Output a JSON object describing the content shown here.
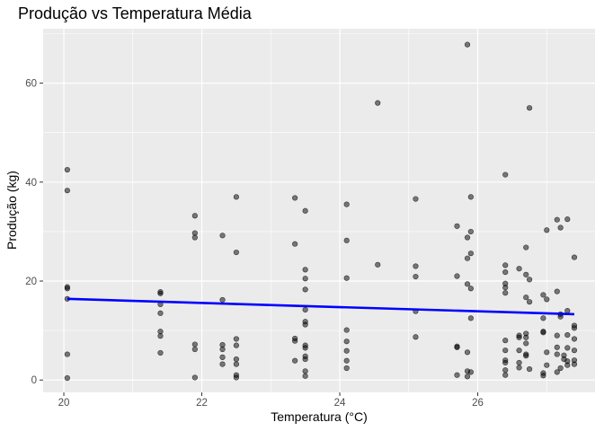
{
  "chart_data": {
    "type": "scatter",
    "title": "Produção vs Temperatura Média",
    "xlabel": "Temperatura (°C)",
    "ylabel": "Produção (kg)",
    "xlim": [
      19.7,
      27.7
    ],
    "ylim": [
      -2.5,
      71
    ],
    "xticks": [
      20,
      22,
      24,
      26
    ],
    "yticks": [
      0,
      20,
      40,
      60
    ],
    "x_tick_labels": [
      "20",
      "22",
      "24",
      "26"
    ],
    "y_tick_labels": [
      "0",
      "20",
      "40",
      "60"
    ],
    "grid": true,
    "legend": "none",
    "colors": {
      "panel": "#ebebeb",
      "grid_major": "#ffffff",
      "point": "#000000",
      "trend": "#0000ff"
    },
    "points": [
      {
        "x": 20.05,
        "y": 42.5
      },
      {
        "x": 20.05,
        "y": 38.3
      },
      {
        "x": 20.05,
        "y": 18.8
      },
      {
        "x": 20.05,
        "y": 18.5
      },
      {
        "x": 20.05,
        "y": 16.4
      },
      {
        "x": 20.05,
        "y": 5.2
      },
      {
        "x": 20.05,
        "y": 0.4
      },
      {
        "x": 21.4,
        "y": 17.8
      },
      {
        "x": 21.4,
        "y": 17.5
      },
      {
        "x": 21.4,
        "y": 15.3
      },
      {
        "x": 21.4,
        "y": 13.5
      },
      {
        "x": 21.4,
        "y": 9.8
      },
      {
        "x": 21.4,
        "y": 8.9
      },
      {
        "x": 21.4,
        "y": 5.5
      },
      {
        "x": 21.9,
        "y": 33.2
      },
      {
        "x": 21.9,
        "y": 29.7
      },
      {
        "x": 21.9,
        "y": 28.8
      },
      {
        "x": 21.9,
        "y": 7.2
      },
      {
        "x": 21.9,
        "y": 6.2
      },
      {
        "x": 21.9,
        "y": 0.5
      },
      {
        "x": 22.3,
        "y": 29.2
      },
      {
        "x": 22.3,
        "y": 16.2
      },
      {
        "x": 22.3,
        "y": 7.1
      },
      {
        "x": 22.3,
        "y": 6.2
      },
      {
        "x": 22.3,
        "y": 4.6
      },
      {
        "x": 22.3,
        "y": 3.2
      },
      {
        "x": 22.5,
        "y": 37.0
      },
      {
        "x": 22.5,
        "y": 25.8
      },
      {
        "x": 22.5,
        "y": 8.3
      },
      {
        "x": 22.5,
        "y": 7.0
      },
      {
        "x": 22.5,
        "y": 4.2
      },
      {
        "x": 22.5,
        "y": 3.2
      },
      {
        "x": 22.5,
        "y": 1.0
      },
      {
        "x": 22.5,
        "y": 0.5
      },
      {
        "x": 23.35,
        "y": 36.8
      },
      {
        "x": 23.35,
        "y": 27.5
      },
      {
        "x": 23.35,
        "y": 8.4
      },
      {
        "x": 23.35,
        "y": 7.9
      },
      {
        "x": 23.35,
        "y": 3.9
      },
      {
        "x": 23.5,
        "y": 34.2
      },
      {
        "x": 23.5,
        "y": 22.3
      },
      {
        "x": 23.5,
        "y": 20.5
      },
      {
        "x": 23.5,
        "y": 18.3
      },
      {
        "x": 23.5,
        "y": 14.2
      },
      {
        "x": 23.5,
        "y": 11.8
      },
      {
        "x": 23.5,
        "y": 11.2
      },
      {
        "x": 23.5,
        "y": 7.0
      },
      {
        "x": 23.5,
        "y": 6.5
      },
      {
        "x": 23.5,
        "y": 4.8
      },
      {
        "x": 23.5,
        "y": 4.2
      },
      {
        "x": 23.5,
        "y": 1.8
      },
      {
        "x": 23.5,
        "y": 0.8
      },
      {
        "x": 24.1,
        "y": 35.5
      },
      {
        "x": 24.1,
        "y": 28.2
      },
      {
        "x": 24.1,
        "y": 20.6
      },
      {
        "x": 24.1,
        "y": 10.1
      },
      {
        "x": 24.1,
        "y": 7.8
      },
      {
        "x": 24.1,
        "y": 5.9
      },
      {
        "x": 24.1,
        "y": 3.9
      },
      {
        "x": 24.1,
        "y": 2.4
      },
      {
        "x": 24.55,
        "y": 56.0
      },
      {
        "x": 24.55,
        "y": 23.3
      },
      {
        "x": 25.1,
        "y": 36.6
      },
      {
        "x": 25.1,
        "y": 23.0
      },
      {
        "x": 25.1,
        "y": 20.9
      },
      {
        "x": 25.1,
        "y": 13.9
      },
      {
        "x": 25.1,
        "y": 8.7
      },
      {
        "x": 25.7,
        "y": 31.1
      },
      {
        "x": 25.7,
        "y": 21.0
      },
      {
        "x": 25.7,
        "y": 6.8
      },
      {
        "x": 25.7,
        "y": 6.6
      },
      {
        "x": 25.7,
        "y": 1.0
      },
      {
        "x": 25.85,
        "y": 67.8
      },
      {
        "x": 25.85,
        "y": 28.8
      },
      {
        "x": 25.85,
        "y": 24.6
      },
      {
        "x": 25.85,
        "y": 19.4
      },
      {
        "x": 25.85,
        "y": 5.6
      },
      {
        "x": 25.85,
        "y": 1.8
      },
      {
        "x": 25.85,
        "y": 0.7
      },
      {
        "x": 25.9,
        "y": 37.0
      },
      {
        "x": 25.9,
        "y": 30.0
      },
      {
        "x": 25.9,
        "y": 25.6
      },
      {
        "x": 25.9,
        "y": 18.5
      },
      {
        "x": 25.9,
        "y": 12.5
      },
      {
        "x": 25.9,
        "y": 1.6
      },
      {
        "x": 26.4,
        "y": 41.5
      },
      {
        "x": 26.4,
        "y": 23.2
      },
      {
        "x": 26.4,
        "y": 21.8
      },
      {
        "x": 26.4,
        "y": 19.5
      },
      {
        "x": 26.4,
        "y": 18.7
      },
      {
        "x": 26.4,
        "y": 17.6
      },
      {
        "x": 26.4,
        "y": 8.0
      },
      {
        "x": 26.4,
        "y": 6.0
      },
      {
        "x": 26.4,
        "y": 4.0
      },
      {
        "x": 26.4,
        "y": 3.5
      },
      {
        "x": 26.4,
        "y": 2.0
      },
      {
        "x": 26.4,
        "y": 1.0
      },
      {
        "x": 26.6,
        "y": 22.5
      },
      {
        "x": 26.6,
        "y": 9.0
      },
      {
        "x": 26.6,
        "y": 8.6
      },
      {
        "x": 26.6,
        "y": 6.0
      },
      {
        "x": 26.6,
        "y": 3.5
      },
      {
        "x": 26.6,
        "y": 2.5
      },
      {
        "x": 26.7,
        "y": 26.8
      },
      {
        "x": 26.7,
        "y": 21.3
      },
      {
        "x": 26.7,
        "y": 16.7
      },
      {
        "x": 26.7,
        "y": 9.4
      },
      {
        "x": 26.7,
        "y": 8.6
      },
      {
        "x": 26.7,
        "y": 7.4
      },
      {
        "x": 26.7,
        "y": 5.2
      },
      {
        "x": 26.7,
        "y": 4.9
      },
      {
        "x": 26.75,
        "y": 55.0
      },
      {
        "x": 26.75,
        "y": 20.3
      },
      {
        "x": 26.75,
        "y": 15.8
      },
      {
        "x": 26.75,
        "y": 2.2
      },
      {
        "x": 26.95,
        "y": 17.2
      },
      {
        "x": 26.95,
        "y": 12.5
      },
      {
        "x": 26.95,
        "y": 9.8
      },
      {
        "x": 26.95,
        "y": 9.6
      },
      {
        "x": 26.95,
        "y": 1.4
      },
      {
        "x": 26.95,
        "y": 0.9
      },
      {
        "x": 27.0,
        "y": 30.3
      },
      {
        "x": 27.0,
        "y": 16.3
      },
      {
        "x": 27.0,
        "y": 5.6
      },
      {
        "x": 27.0,
        "y": 3.0
      },
      {
        "x": 27.15,
        "y": 32.4
      },
      {
        "x": 27.15,
        "y": 17.9
      },
      {
        "x": 27.15,
        "y": 9.0
      },
      {
        "x": 27.15,
        "y": 6.6
      },
      {
        "x": 27.15,
        "y": 5.2
      },
      {
        "x": 27.15,
        "y": 1.6
      },
      {
        "x": 27.2,
        "y": 30.8
      },
      {
        "x": 27.2,
        "y": 13.3
      },
      {
        "x": 27.2,
        "y": 12.8
      },
      {
        "x": 27.2,
        "y": 2.4
      },
      {
        "x": 27.25,
        "y": 5.0
      },
      {
        "x": 27.25,
        "y": 4.2
      },
      {
        "x": 27.3,
        "y": 32.5
      },
      {
        "x": 27.3,
        "y": 14.0
      },
      {
        "x": 27.3,
        "y": 9.1
      },
      {
        "x": 27.3,
        "y": 6.5
      },
      {
        "x": 27.3,
        "y": 3.8
      },
      {
        "x": 27.3,
        "y": 3.0
      },
      {
        "x": 27.4,
        "y": 24.8
      },
      {
        "x": 27.4,
        "y": 11.0
      },
      {
        "x": 27.4,
        "y": 10.5
      },
      {
        "x": 27.4,
        "y": 8.3
      },
      {
        "x": 27.4,
        "y": 6.0
      },
      {
        "x": 27.4,
        "y": 4.0
      },
      {
        "x": 27.4,
        "y": 3.2
      }
    ],
    "trend_line": {
      "x": [
        20.05,
        27.4
      ],
      "y": [
        16.4,
        13.3
      ]
    }
  }
}
